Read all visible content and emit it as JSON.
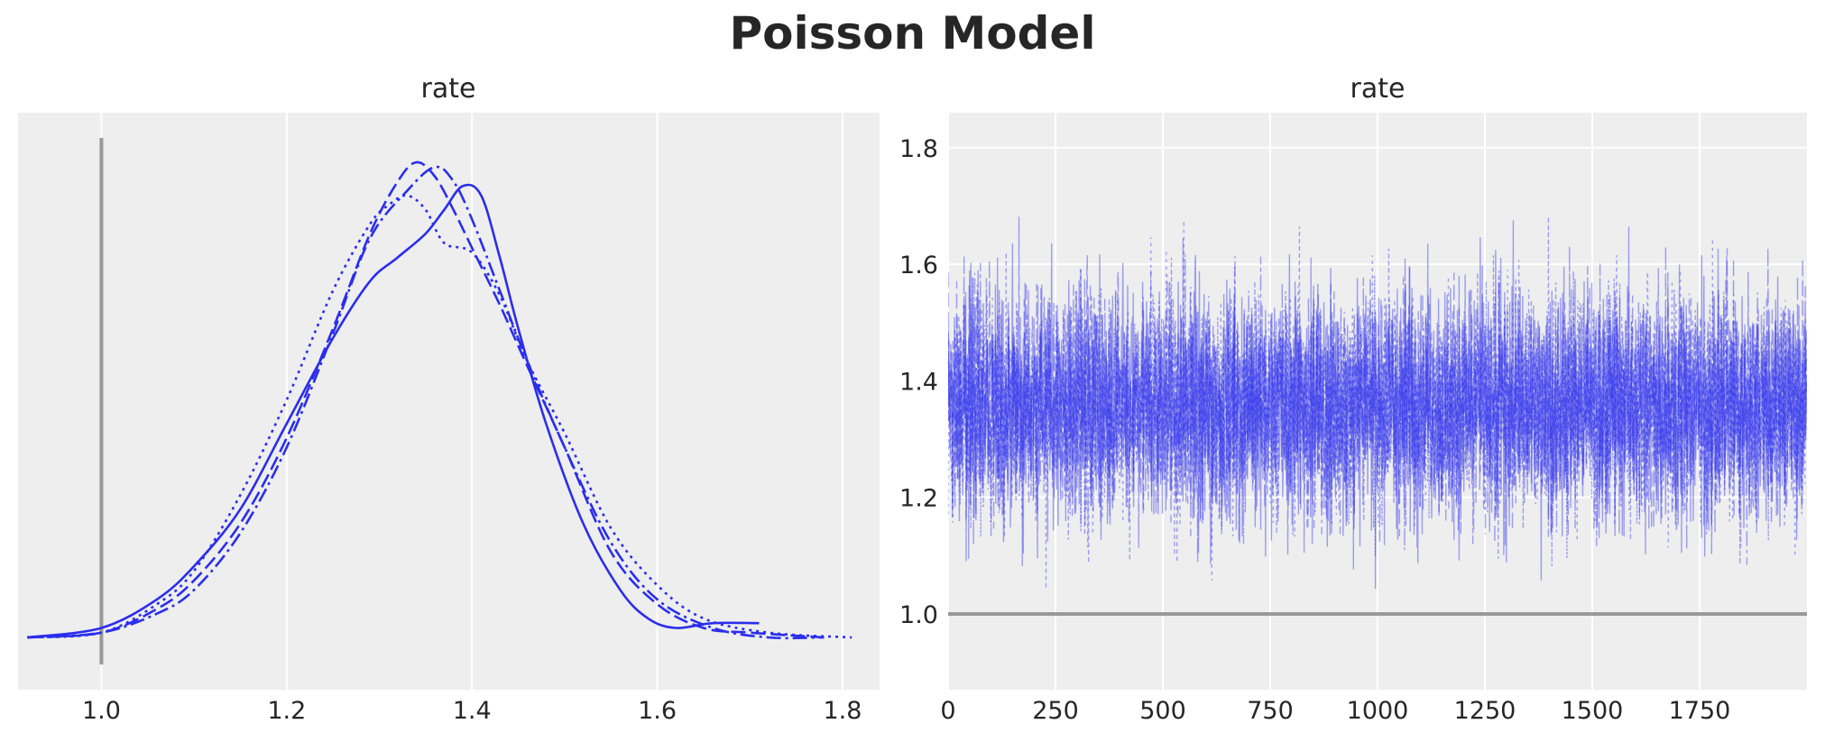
{
  "title": "Poisson Model",
  "colors": {
    "line": "#2a2eec",
    "ref": "#999999",
    "panel": "#eeeeee",
    "grid": "#ffffff"
  },
  "chart_data": [
    {
      "type": "line",
      "subtype": "kde",
      "title": "rate",
      "xlabel": "",
      "ylabel": "",
      "xlim": [
        0.91,
        1.84
      ],
      "x_ticks": [
        "1.0",
        "1.2",
        "1.4",
        "1.6",
        "1.8"
      ],
      "y_ticks": [],
      "grid": true,
      "reference_line": {
        "orientation": "vertical",
        "x": 1.0
      },
      "series": [
        {
          "line_style": "solid",
          "x": [
            0.92,
            1.0,
            1.06,
            1.1,
            1.15,
            1.2,
            1.25,
            1.29,
            1.32,
            1.35,
            1.37,
            1.39,
            1.41,
            1.43,
            1.45,
            1.48,
            1.52,
            1.56,
            1.59,
            1.62,
            1.66,
            1.71
          ],
          "y": [
            0.0,
            0.02,
            0.08,
            0.15,
            0.27,
            0.45,
            0.63,
            0.75,
            0.8,
            0.85,
            0.9,
            0.95,
            0.93,
            0.8,
            0.65,
            0.45,
            0.24,
            0.1,
            0.04,
            0.02,
            0.03,
            0.03
          ]
        },
        {
          "line_style": "dashed",
          "x": [
            0.92,
            1.0,
            1.06,
            1.1,
            1.15,
            1.2,
            1.25,
            1.29,
            1.32,
            1.34,
            1.36,
            1.38,
            1.4,
            1.43,
            1.46,
            1.5,
            1.55,
            1.6,
            1.65,
            1.7,
            1.78
          ],
          "y": [
            0.0,
            0.01,
            0.06,
            0.12,
            0.24,
            0.42,
            0.65,
            0.85,
            0.96,
            1.0,
            0.97,
            0.9,
            0.82,
            0.7,
            0.57,
            0.4,
            0.18,
            0.07,
            0.02,
            0.01,
            0.0
          ]
        },
        {
          "line_style": "dashdot",
          "x": [
            0.92,
            1.0,
            1.06,
            1.1,
            1.15,
            1.2,
            1.25,
            1.29,
            1.33,
            1.36,
            1.38,
            1.4,
            1.43,
            1.46,
            1.5,
            1.55,
            1.6,
            1.66,
            1.72,
            1.78
          ],
          "y": [
            0.0,
            0.01,
            0.05,
            0.1,
            0.22,
            0.4,
            0.64,
            0.84,
            0.94,
            0.99,
            0.96,
            0.88,
            0.73,
            0.58,
            0.4,
            0.2,
            0.08,
            0.02,
            0.0,
            0.0
          ]
        },
        {
          "line_style": "dotted",
          "x": [
            0.92,
            1.0,
            1.06,
            1.1,
            1.15,
            1.2,
            1.25,
            1.29,
            1.31,
            1.33,
            1.35,
            1.37,
            1.4,
            1.43,
            1.46,
            1.5,
            1.55,
            1.6,
            1.65,
            1.72,
            1.81
          ],
          "y": [
            0.0,
            0.01,
            0.07,
            0.14,
            0.3,
            0.5,
            0.73,
            0.87,
            0.91,
            0.93,
            0.9,
            0.83,
            0.81,
            0.72,
            0.58,
            0.43,
            0.23,
            0.11,
            0.04,
            0.01,
            0.0
          ]
        }
      ]
    },
    {
      "type": "line",
      "subtype": "trace",
      "title": "rate",
      "xlabel": "",
      "ylabel": "",
      "xlim": [
        0,
        2000
      ],
      "ylim": [
        0.87,
        1.86
      ],
      "x_ticks": [
        "0",
        "250",
        "500",
        "750",
        "1000",
        "1250",
        "1500",
        "1750"
      ],
      "y_ticks": [
        "1.0",
        "1.2",
        "1.4",
        "1.6",
        "1.8"
      ],
      "grid": true,
      "reference_line": {
        "orientation": "horizontal",
        "y": 1.0
      },
      "chains": 4,
      "draws": 2000,
      "mean": 1.36,
      "std": 0.1,
      "approx_min": 0.92,
      "approx_max": 1.82
    }
  ]
}
